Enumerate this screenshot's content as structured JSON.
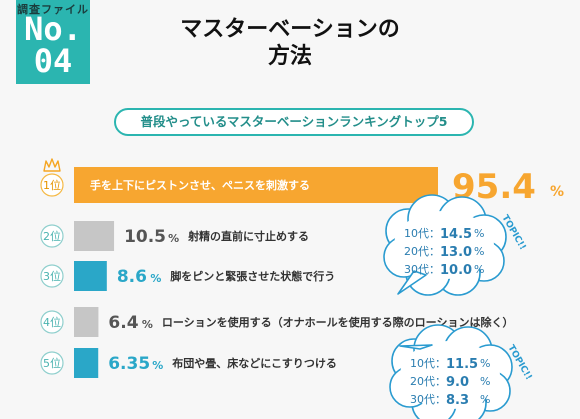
{
  "badge": {
    "line1": "調査ファイル",
    "line2": "No.",
    "line3": "04"
  },
  "title": {
    "line1": "マスターベーションの",
    "line2": "方法"
  },
  "subtitle": "普段やっているマスターベーションランキングトップ5",
  "colors": {
    "teal": "#2bb5b0",
    "orange": "#f7a630",
    "gray": "#c6c6c6",
    "blue": "#2aa7c8",
    "bubble": "#2a9bd0"
  },
  "chart_data": {
    "type": "bar",
    "orientation": "horizontal",
    "categories": [
      "手を上下にピストンさせ、ペニスを刺激する",
      "射精の直前に寸止めする",
      "脚をピンと緊張させた状態で行う",
      "ローションを使用する（オナホールを使用する際のローションは除く）",
      "布団や畳、床などにこすりつける"
    ],
    "ranks": [
      "1位",
      "2位",
      "3位",
      "4位",
      "5位"
    ],
    "values": [
      95.4,
      10.5,
      8.6,
      6.4,
      6.35
    ],
    "value_labels": [
      "95.4",
      "10.5",
      "8.6",
      "6.4",
      "6.35"
    ],
    "unit": "%",
    "bar_colors": [
      "#f7a630",
      "#c6c6c6",
      "#2aa7c8",
      "#c6c6c6",
      "#2aa7c8"
    ],
    "rank_icons": [
      "crown-icon",
      null,
      null,
      null,
      null
    ],
    "breakdowns": [
      {
        "for_rank": "2位",
        "tag": "TOPIC!!",
        "rows": [
          {
            "label": "10代：",
            "value": "14.5",
            "unit": "%"
          },
          {
            "label": "20代：",
            "value": "13.0",
            "unit": "%"
          },
          {
            "label": "30代：",
            "value": "10.0",
            "unit": "%"
          }
        ]
      },
      {
        "for_rank": "5位",
        "tag": "TOPIC!!",
        "rows": [
          {
            "label": "10代：",
            "value": "11.5",
            "unit": "%"
          },
          {
            "label": "20代：",
            "value": "9.0",
            "unit": "%"
          },
          {
            "label": "30代：",
            "value": "8.3",
            "unit": "%"
          }
        ]
      }
    ]
  }
}
